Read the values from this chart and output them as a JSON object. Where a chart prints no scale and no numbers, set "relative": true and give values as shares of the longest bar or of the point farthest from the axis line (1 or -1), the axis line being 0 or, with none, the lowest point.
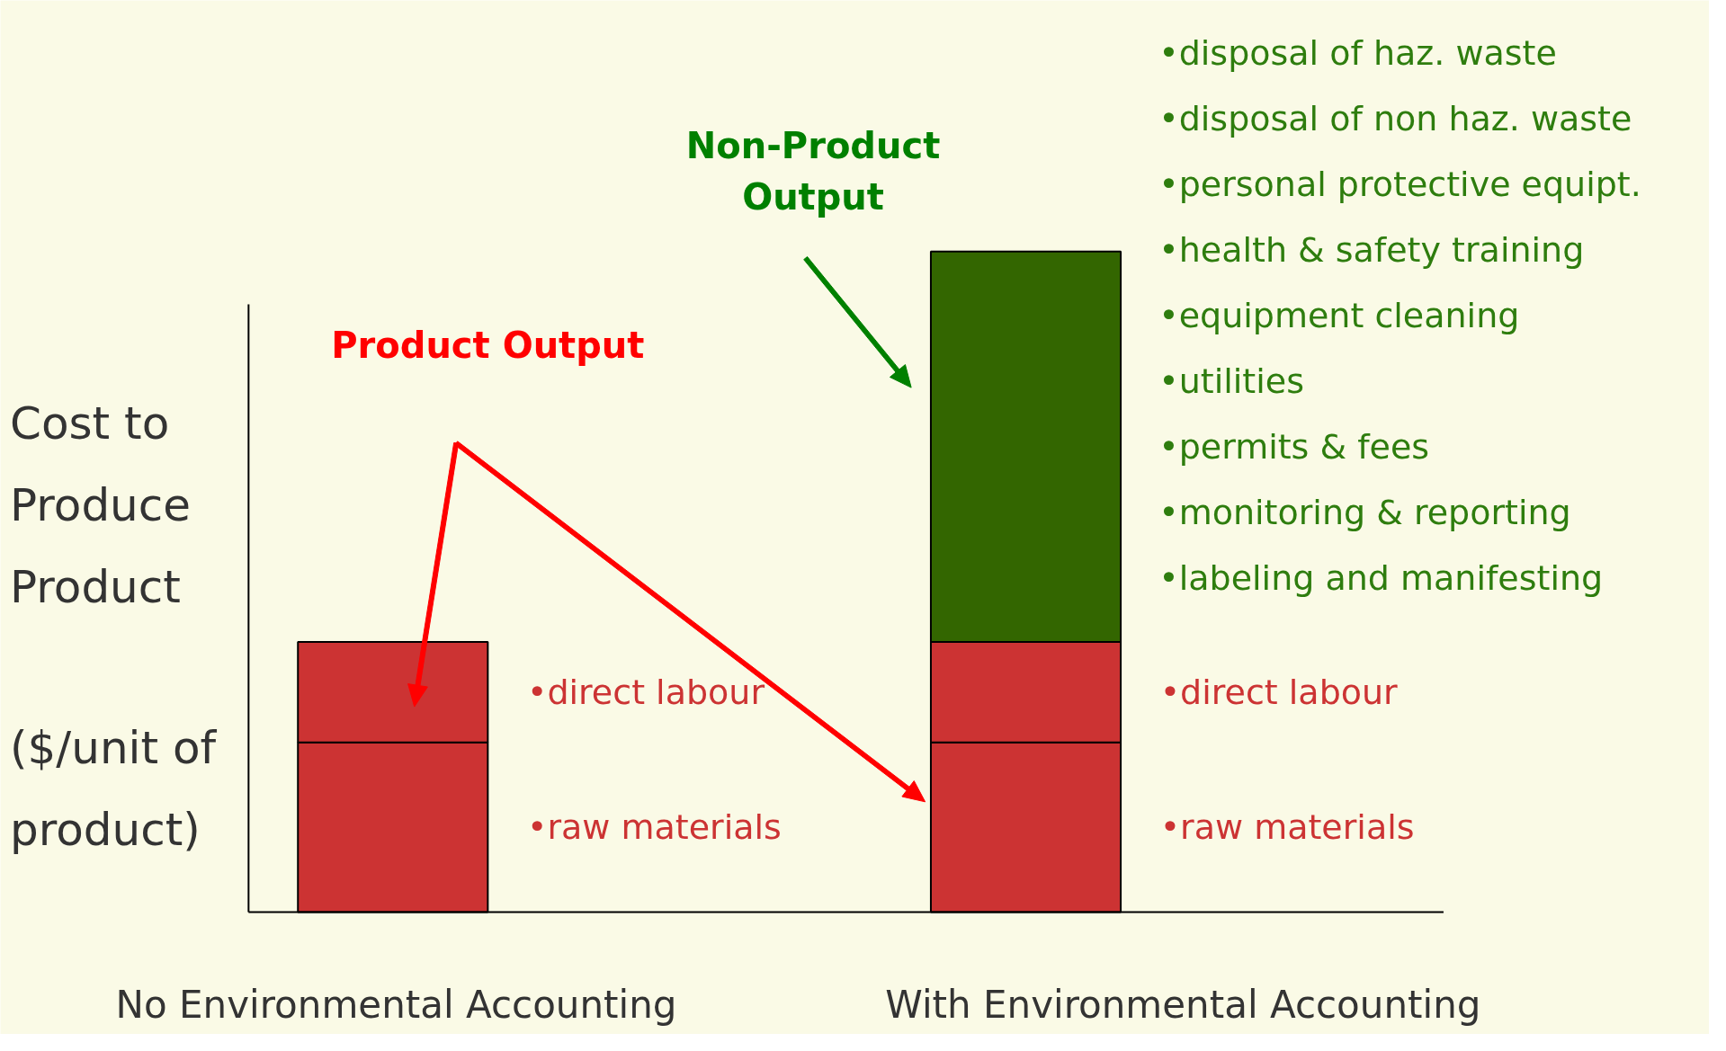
{
  "chart_data": {
    "type": "bar",
    "stacked": true,
    "relative": true,
    "categories": [
      "No Environmental Accounting",
      "With Environmental Accounting"
    ],
    "ylabel": "Cost to Produce Product ($/unit of product)",
    "series": [
      {
        "name": "•raw materials",
        "color": "#cc3333",
        "values": [
          0.257,
          0.257
        ]
      },
      {
        "name": "•direct labour",
        "color": "#cc3333",
        "values": [
          0.152,
          0.152
        ]
      },
      {
        "color": "#336600",
        "values": [
          null,
          0.591
        ]
      }
    ],
    "annotations": [
      "Product Output",
      "Non-Product Output",
      "•disposal of haz. waste",
      "•disposal of non haz. waste",
      "•personal protective equipt.",
      "•health & safety training",
      "•equipment cleaning",
      "•utilities",
      "•permits & fees",
      "•monitoring & reporting",
      "•labeling and manifesting"
    ]
  }
}
